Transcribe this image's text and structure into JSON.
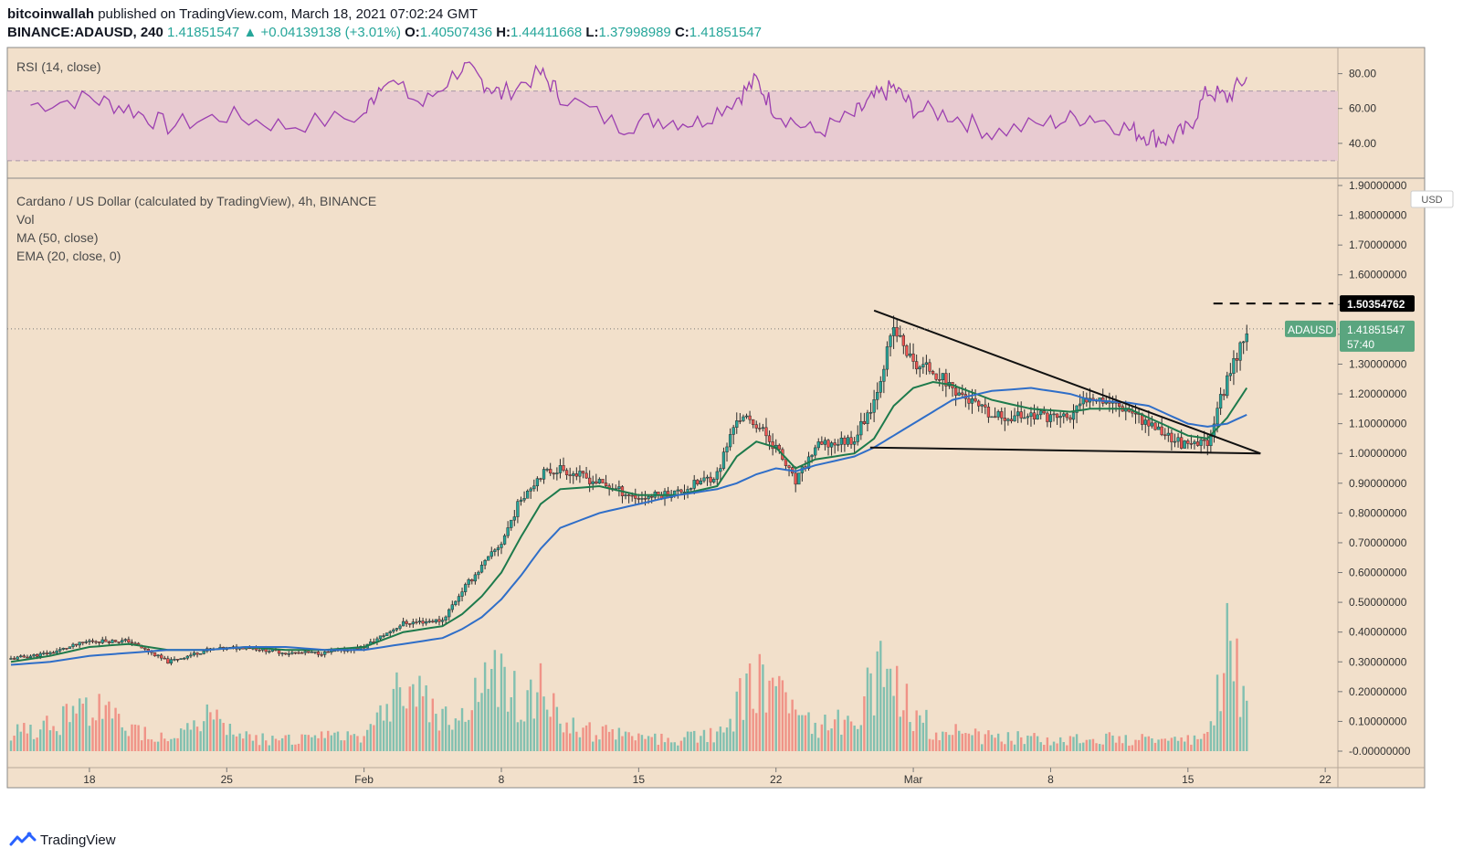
{
  "header": {
    "author": "bitcoinwallah",
    "published": "published on TradingView.com, March 18, 2021 07:02:24 GMT",
    "symbol": "BINANCE:ADAUSD, 240",
    "last": "1.41851547",
    "change_arrow": "▲",
    "change": "+0.04139138 (+3.01%)",
    "o_label": "O:",
    "o_value": "1.40507436",
    "h_label": "H:",
    "h_value": "1.44411668",
    "l_label": "L:",
    "l_value": "1.37998989",
    "c_label": "C:",
    "c_value": "1.41851547"
  },
  "footer": {
    "brand": "TradingView",
    "logo_icon": "tradingview-logo-icon"
  },
  "colors": {
    "background": "#f2e0cb",
    "rsi_band": "#e8cbd1",
    "rsi_line": "#9c3fb0",
    "up": "#26a69a",
    "down": "#ef5350",
    "wick": "#2b2b2b",
    "ema": "#1d7a4c",
    "ma": "#2f6ec8",
    "trendline": "#111111",
    "price_badge": "#5aa57f",
    "level_badge": "#000000"
  },
  "chart_data": [
    {
      "type": "line",
      "title": "RSI (14, close)",
      "yticks": [
        "40.00",
        "60.00",
        "80.00"
      ],
      "ylim": [
        20,
        95
      ],
      "band": [
        30,
        70
      ],
      "x": [
        "Jan 15",
        "Jan 18",
        "Jan 20",
        "Jan 22",
        "Jan 25",
        "Jan 28",
        "Feb 1",
        "Feb 2",
        "Feb 4",
        "Feb 6",
        "Feb 7",
        "Feb 8",
        "Feb 10",
        "Feb 11",
        "Feb 14",
        "Feb 16",
        "Feb 18",
        "Feb 20",
        "Feb 21",
        "Feb 22",
        "Feb 24",
        "Feb 26",
        "Feb 27",
        "Feb 28",
        "Mar 1",
        "Mar 3",
        "Mar 5",
        "Mar 8",
        "Mar 10",
        "Mar 12",
        "Mar 13",
        "Mar 14",
        "Mar 15",
        "Mar 16",
        "Mar 17",
        "Mar 18"
      ],
      "values": [
        62,
        66,
        60,
        50,
        56,
        50,
        56,
        78,
        62,
        84,
        76,
        68,
        80,
        68,
        50,
        54,
        52,
        66,
        76,
        58,
        46,
        56,
        66,
        72,
        60,
        56,
        46,
        52,
        56,
        48,
        44,
        42,
        48,
        70,
        66,
        78
      ]
    },
    {
      "type": "line",
      "title": "Cardano / US Dollar (calculated by TradingView), 4h, BINANCE",
      "legend": [
        "Vol",
        "MA (50, close)",
        "EMA (20, close, 0)"
      ],
      "series_name": "ADAUSD",
      "currency": "USD",
      "last_price": "1.41851547",
      "countdown": "57:40",
      "level": "1.50354762",
      "yticks": [
        "-0.00000000",
        "0.10000000",
        "0.20000000",
        "0.30000000",
        "0.40000000",
        "0.50000000",
        "0.60000000",
        "0.70000000",
        "0.80000000",
        "0.90000000",
        "1.00000000",
        "1.10000000",
        "1.20000000",
        "1.30000000",
        "1.40000000",
        "1.50000000",
        "1.60000000",
        "1.70000000",
        "1.80000000",
        "1.90000000"
      ],
      "xticks": [
        "18",
        "25",
        "Feb",
        "8",
        "15",
        "22",
        "Mar",
        "8",
        "15",
        "22"
      ],
      "ylim": [
        -0.02,
        1.92
      ],
      "x": [
        "Jan 14",
        "Jan 16",
        "Jan 18",
        "Jan 20",
        "Jan 22",
        "Jan 24",
        "Jan 26",
        "Jan 28",
        "Jan 30",
        "Feb 1",
        "Feb 3",
        "Feb 5",
        "Feb 6",
        "Feb 7",
        "Feb 8",
        "Feb 9",
        "Feb 10",
        "Feb 11",
        "Feb 13",
        "Feb 15",
        "Feb 17",
        "Feb 19",
        "Feb 20",
        "Feb 21",
        "Feb 22",
        "Feb 23",
        "Feb 24",
        "Feb 26",
        "Feb 27",
        "Feb 28",
        "Mar 1",
        "Mar 2",
        "Mar 3",
        "Mar 5",
        "Mar 7",
        "Mar 9",
        "Mar 10",
        "Mar 12",
        "Mar 13",
        "Mar 14",
        "Mar 15",
        "Mar 16",
        "Mar 17",
        "Mar 18"
      ],
      "close": [
        0.31,
        0.33,
        0.37,
        0.37,
        0.3,
        0.34,
        0.35,
        0.33,
        0.33,
        0.35,
        0.43,
        0.44,
        0.54,
        0.62,
        0.7,
        0.85,
        0.93,
        0.95,
        0.9,
        0.85,
        0.87,
        0.93,
        1.12,
        1.1,
        1.02,
        0.9,
        1.02,
        1.05,
        1.18,
        1.42,
        1.3,
        1.28,
        1.22,
        1.12,
        1.13,
        1.12,
        1.2,
        1.15,
        1.1,
        1.06,
        1.02,
        1.04,
        1.25,
        1.42
      ],
      "ema20": [
        0.3,
        0.32,
        0.35,
        0.36,
        0.34,
        0.34,
        0.35,
        0.34,
        0.34,
        0.35,
        0.4,
        0.42,
        0.46,
        0.52,
        0.6,
        0.72,
        0.83,
        0.88,
        0.89,
        0.86,
        0.86,
        0.89,
        0.99,
        1.04,
        1.02,
        0.95,
        0.98,
        1.0,
        1.05,
        1.16,
        1.22,
        1.24,
        1.23,
        1.18,
        1.15,
        1.14,
        1.15,
        1.15,
        1.12,
        1.09,
        1.06,
        1.05,
        1.12,
        1.22
      ],
      "ma50": [
        0.29,
        0.3,
        0.32,
        0.33,
        0.34,
        0.34,
        0.35,
        0.35,
        0.34,
        0.34,
        0.36,
        0.38,
        0.41,
        0.45,
        0.51,
        0.59,
        0.68,
        0.75,
        0.8,
        0.83,
        0.86,
        0.88,
        0.9,
        0.93,
        0.95,
        0.94,
        0.96,
        0.99,
        1.02,
        1.06,
        1.1,
        1.14,
        1.18,
        1.21,
        1.22,
        1.2,
        1.18,
        1.17,
        1.16,
        1.13,
        1.1,
        1.09,
        1.1,
        1.13
      ],
      "volume": [
        0.08,
        0.12,
        0.2,
        0.1,
        0.06,
        0.14,
        0.06,
        0.05,
        0.06,
        0.08,
        0.3,
        0.16,
        0.14,
        0.28,
        0.34,
        0.22,
        0.26,
        0.12,
        0.08,
        0.06,
        0.05,
        0.08,
        0.2,
        0.3,
        0.22,
        0.26,
        0.1,
        0.14,
        0.3,
        0.36,
        0.16,
        0.1,
        0.08,
        0.06,
        0.06,
        0.05,
        0.06,
        0.05,
        0.05,
        0.04,
        0.05,
        0.06,
        0.44,
        0.24
      ]
    }
  ]
}
